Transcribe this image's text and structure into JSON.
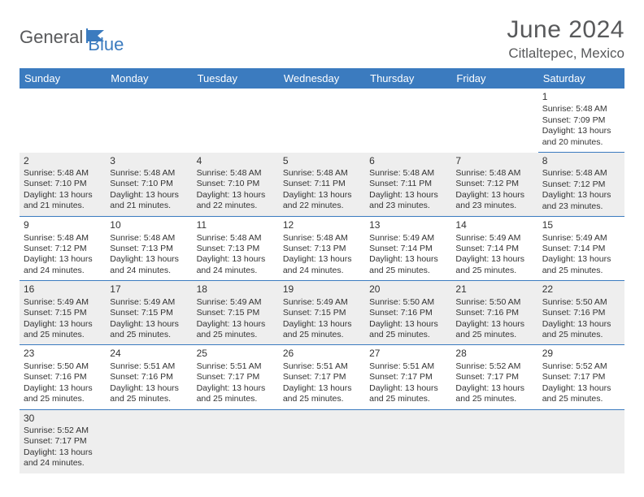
{
  "logo": {
    "main": "General",
    "sub": "Blue"
  },
  "title": "June 2024",
  "location": "Citlaltepec, Mexico",
  "colors": {
    "header_bg": "#3b7bbf",
    "header_text": "#ffffff",
    "alt_row_bg": "#eeeeee",
    "text": "#333333",
    "muted": "#58595b"
  },
  "day_headers": [
    "Sunday",
    "Monday",
    "Tuesday",
    "Wednesday",
    "Thursday",
    "Friday",
    "Saturday"
  ],
  "weeks": [
    [
      null,
      null,
      null,
      null,
      null,
      null,
      {
        "n": "1",
        "sr": "Sunrise: 5:48 AM",
        "ss": "Sunset: 7:09 PM",
        "d1": "Daylight: 13 hours",
        "d2": "and 20 minutes."
      }
    ],
    [
      {
        "n": "2",
        "sr": "Sunrise: 5:48 AM",
        "ss": "Sunset: 7:10 PM",
        "d1": "Daylight: 13 hours",
        "d2": "and 21 minutes."
      },
      {
        "n": "3",
        "sr": "Sunrise: 5:48 AM",
        "ss": "Sunset: 7:10 PM",
        "d1": "Daylight: 13 hours",
        "d2": "and 21 minutes."
      },
      {
        "n": "4",
        "sr": "Sunrise: 5:48 AM",
        "ss": "Sunset: 7:10 PM",
        "d1": "Daylight: 13 hours",
        "d2": "and 22 minutes."
      },
      {
        "n": "5",
        "sr": "Sunrise: 5:48 AM",
        "ss": "Sunset: 7:11 PM",
        "d1": "Daylight: 13 hours",
        "d2": "and 22 minutes."
      },
      {
        "n": "6",
        "sr": "Sunrise: 5:48 AM",
        "ss": "Sunset: 7:11 PM",
        "d1": "Daylight: 13 hours",
        "d2": "and 23 minutes."
      },
      {
        "n": "7",
        "sr": "Sunrise: 5:48 AM",
        "ss": "Sunset: 7:12 PM",
        "d1": "Daylight: 13 hours",
        "d2": "and 23 minutes."
      },
      {
        "n": "8",
        "sr": "Sunrise: 5:48 AM",
        "ss": "Sunset: 7:12 PM",
        "d1": "Daylight: 13 hours",
        "d2": "and 23 minutes."
      }
    ],
    [
      {
        "n": "9",
        "sr": "Sunrise: 5:48 AM",
        "ss": "Sunset: 7:12 PM",
        "d1": "Daylight: 13 hours",
        "d2": "and 24 minutes."
      },
      {
        "n": "10",
        "sr": "Sunrise: 5:48 AM",
        "ss": "Sunset: 7:13 PM",
        "d1": "Daylight: 13 hours",
        "d2": "and 24 minutes."
      },
      {
        "n": "11",
        "sr": "Sunrise: 5:48 AM",
        "ss": "Sunset: 7:13 PM",
        "d1": "Daylight: 13 hours",
        "d2": "and 24 minutes."
      },
      {
        "n": "12",
        "sr": "Sunrise: 5:48 AM",
        "ss": "Sunset: 7:13 PM",
        "d1": "Daylight: 13 hours",
        "d2": "and 24 minutes."
      },
      {
        "n": "13",
        "sr": "Sunrise: 5:49 AM",
        "ss": "Sunset: 7:14 PM",
        "d1": "Daylight: 13 hours",
        "d2": "and 25 minutes."
      },
      {
        "n": "14",
        "sr": "Sunrise: 5:49 AM",
        "ss": "Sunset: 7:14 PM",
        "d1": "Daylight: 13 hours",
        "d2": "and 25 minutes."
      },
      {
        "n": "15",
        "sr": "Sunrise: 5:49 AM",
        "ss": "Sunset: 7:14 PM",
        "d1": "Daylight: 13 hours",
        "d2": "and 25 minutes."
      }
    ],
    [
      {
        "n": "16",
        "sr": "Sunrise: 5:49 AM",
        "ss": "Sunset: 7:15 PM",
        "d1": "Daylight: 13 hours",
        "d2": "and 25 minutes."
      },
      {
        "n": "17",
        "sr": "Sunrise: 5:49 AM",
        "ss": "Sunset: 7:15 PM",
        "d1": "Daylight: 13 hours",
        "d2": "and 25 minutes."
      },
      {
        "n": "18",
        "sr": "Sunrise: 5:49 AM",
        "ss": "Sunset: 7:15 PM",
        "d1": "Daylight: 13 hours",
        "d2": "and 25 minutes."
      },
      {
        "n": "19",
        "sr": "Sunrise: 5:49 AM",
        "ss": "Sunset: 7:15 PM",
        "d1": "Daylight: 13 hours",
        "d2": "and 25 minutes."
      },
      {
        "n": "20",
        "sr": "Sunrise: 5:50 AM",
        "ss": "Sunset: 7:16 PM",
        "d1": "Daylight: 13 hours",
        "d2": "and 25 minutes."
      },
      {
        "n": "21",
        "sr": "Sunrise: 5:50 AM",
        "ss": "Sunset: 7:16 PM",
        "d1": "Daylight: 13 hours",
        "d2": "and 25 minutes."
      },
      {
        "n": "22",
        "sr": "Sunrise: 5:50 AM",
        "ss": "Sunset: 7:16 PM",
        "d1": "Daylight: 13 hours",
        "d2": "and 25 minutes."
      }
    ],
    [
      {
        "n": "23",
        "sr": "Sunrise: 5:50 AM",
        "ss": "Sunset: 7:16 PM",
        "d1": "Daylight: 13 hours",
        "d2": "and 25 minutes."
      },
      {
        "n": "24",
        "sr": "Sunrise: 5:51 AM",
        "ss": "Sunset: 7:16 PM",
        "d1": "Daylight: 13 hours",
        "d2": "and 25 minutes."
      },
      {
        "n": "25",
        "sr": "Sunrise: 5:51 AM",
        "ss": "Sunset: 7:17 PM",
        "d1": "Daylight: 13 hours",
        "d2": "and 25 minutes."
      },
      {
        "n": "26",
        "sr": "Sunrise: 5:51 AM",
        "ss": "Sunset: 7:17 PM",
        "d1": "Daylight: 13 hours",
        "d2": "and 25 minutes."
      },
      {
        "n": "27",
        "sr": "Sunrise: 5:51 AM",
        "ss": "Sunset: 7:17 PM",
        "d1": "Daylight: 13 hours",
        "d2": "and 25 minutes."
      },
      {
        "n": "28",
        "sr": "Sunrise: 5:52 AM",
        "ss": "Sunset: 7:17 PM",
        "d1": "Daylight: 13 hours",
        "d2": "and 25 minutes."
      },
      {
        "n": "29",
        "sr": "Sunrise: 5:52 AM",
        "ss": "Sunset: 7:17 PM",
        "d1": "Daylight: 13 hours",
        "d2": "and 25 minutes."
      }
    ],
    [
      {
        "n": "30",
        "sr": "Sunrise: 5:52 AM",
        "ss": "Sunset: 7:17 PM",
        "d1": "Daylight: 13 hours",
        "d2": "and 24 minutes."
      },
      null,
      null,
      null,
      null,
      null,
      null
    ]
  ]
}
